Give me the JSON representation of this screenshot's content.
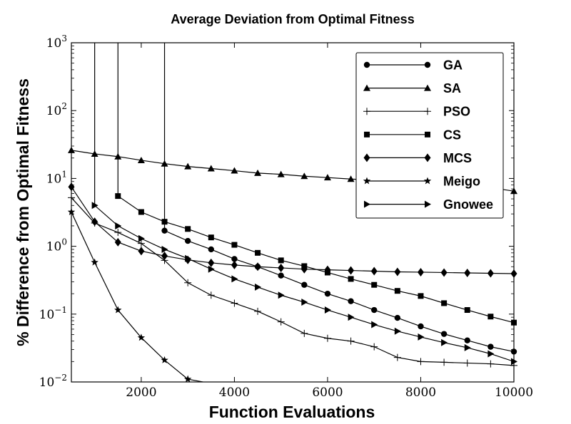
{
  "chart_data": {
    "type": "line",
    "title": "Average Deviation from Optimal Fitness",
    "xlabel": "Function Evaluations",
    "ylabel": "% Difference from Optimal Fitness",
    "xlim": [
      500,
      10000
    ],
    "ylim": [
      0.01,
      1000
    ],
    "y_scale": "log",
    "x_ticks": [
      2000,
      4000,
      6000,
      8000,
      10000
    ],
    "x_tick_labels": [
      "2000",
      "4000",
      "6000",
      "8000",
      "10000"
    ],
    "y_ticks": [
      0.01,
      0.1,
      1,
      10,
      100,
      1000
    ],
    "y_tick_labels": [
      {
        "base": "10",
        "exp": "−2"
      },
      {
        "base": "10",
        "exp": "−1"
      },
      {
        "base": "10",
        "exp": "0"
      },
      {
        "base": "10",
        "exp": "1"
      },
      {
        "base": "10",
        "exp": "2"
      },
      {
        "base": "10",
        "exp": "3"
      }
    ],
    "grid": false,
    "legend_position": "top-right",
    "series": [
      {
        "name": "GA",
        "marker": "circle",
        "color": "#000000",
        "x": [
          2500,
          2500,
          3000,
          3500,
          4000,
          4500,
          5000,
          5500,
          6000,
          6500,
          7000,
          7500,
          8000,
          8500,
          9000,
          9500,
          10000
        ],
        "y": [
          1000,
          1.7,
          1.2,
          0.9,
          0.65,
          0.5,
          0.37,
          0.27,
          0.2,
          0.155,
          0.115,
          0.088,
          0.066,
          0.051,
          0.041,
          0.033,
          0.028
        ]
      },
      {
        "name": "SA",
        "marker": "triangle",
        "color": "#000000",
        "x": [
          500,
          1000,
          1500,
          2000,
          2500,
          3000,
          3500,
          4000,
          4500,
          5000,
          5500,
          6000,
          6500,
          7000,
          7500,
          8000,
          8500,
          9000,
          9500,
          10000
        ],
        "y": [
          26,
          23,
          21,
          18.5,
          16.5,
          15,
          14,
          13,
          12,
          11.5,
          10.8,
          10.3,
          9.8,
          9.4,
          9.0,
          8.6,
          8.2,
          7.8,
          7.3,
          6.5
        ]
      },
      {
        "name": "PSO",
        "marker": "plus",
        "color": "#000000",
        "x": [
          500,
          1000,
          1500,
          2000,
          2500,
          3000,
          3500,
          4000,
          4500,
          5000,
          5500,
          6000,
          6500,
          7000,
          7500,
          8000,
          8500,
          9000,
          9500,
          10000
        ],
        "y": [
          5.2,
          2.2,
          1.6,
          1.1,
          0.62,
          0.29,
          0.19,
          0.145,
          0.11,
          0.077,
          0.052,
          0.044,
          0.04,
          0.033,
          0.023,
          0.02,
          0.0195,
          0.019,
          0.0185,
          0.0175
        ]
      },
      {
        "name": "CS",
        "marker": "square",
        "color": "#000000",
        "x": [
          1500,
          1500,
          2000,
          2500,
          3000,
          3500,
          4000,
          4500,
          5000,
          5500,
          6000,
          6500,
          7000,
          7500,
          8000,
          8500,
          9000,
          9500,
          10000
        ],
        "y": [
          1000,
          5.5,
          3.2,
          2.3,
          1.8,
          1.35,
          1.05,
          0.8,
          0.62,
          0.51,
          0.41,
          0.33,
          0.27,
          0.22,
          0.185,
          0.145,
          0.115,
          0.092,
          0.075
        ]
      },
      {
        "name": "MCS",
        "marker": "diamond",
        "color": "#000000",
        "x": [
          500,
          1000,
          1500,
          2000,
          2500,
          3000,
          3500,
          4000,
          4500,
          5000,
          5500,
          6000,
          6500,
          7000,
          7500,
          8000,
          8500,
          9000,
          9500,
          10000
        ],
        "y": [
          7.5,
          2.3,
          1.15,
          0.85,
          0.72,
          0.63,
          0.57,
          0.53,
          0.5,
          0.48,
          0.46,
          0.45,
          0.44,
          0.43,
          0.42,
          0.415,
          0.41,
          0.405,
          0.4,
          0.395
        ]
      },
      {
        "name": "Meigo",
        "marker": "star",
        "color": "#000000",
        "x": [
          500,
          1000,
          1500,
          2000,
          2500,
          3000,
          3500
        ],
        "y": [
          3.2,
          0.58,
          0.115,
          0.045,
          0.021,
          0.011,
          0.0095
        ]
      },
      {
        "name": "Gnowee",
        "marker": "triangle-right",
        "color": "#000000",
        "x": [
          1000,
          1000,
          1500,
          2000,
          2500,
          3000,
          3500,
          4000,
          4500,
          5000,
          5500,
          6000,
          6500,
          7000,
          7500,
          8000,
          8500,
          9000,
          9500,
          10000
        ],
        "y": [
          1000,
          4.0,
          2.0,
          1.3,
          0.9,
          0.66,
          0.46,
          0.33,
          0.25,
          0.19,
          0.15,
          0.115,
          0.09,
          0.07,
          0.056,
          0.046,
          0.038,
          0.032,
          0.026,
          0.02
        ]
      }
    ]
  }
}
